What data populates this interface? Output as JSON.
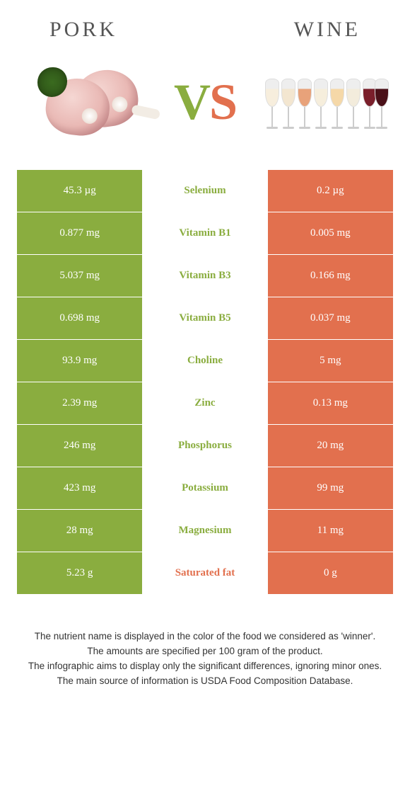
{
  "colors": {
    "left": "#8aad3f",
    "right": "#e2704e",
    "background": "#ffffff",
    "header_text": "#555555"
  },
  "header": {
    "left_title": "PORK",
    "right_title": "WINE"
  },
  "vs": {
    "v": "V",
    "s": "S"
  },
  "rows": [
    {
      "left": "45.3 µg",
      "label": "Selenium",
      "right": "0.2 µg",
      "winner": "left"
    },
    {
      "left": "0.877 mg",
      "label": "Vitamin B1",
      "right": "0.005 mg",
      "winner": "left"
    },
    {
      "left": "5.037 mg",
      "label": "Vitamin B3",
      "right": "0.166 mg",
      "winner": "left"
    },
    {
      "left": "0.698 mg",
      "label": "Vitamin B5",
      "right": "0.037 mg",
      "winner": "left"
    },
    {
      "left": "93.9 mg",
      "label": "Choline",
      "right": "5 mg",
      "winner": "left"
    },
    {
      "left": "2.39 mg",
      "label": "Zinc",
      "right": "0.13 mg",
      "winner": "left"
    },
    {
      "left": "246 mg",
      "label": "Phosphorus",
      "right": "20 mg",
      "winner": "left"
    },
    {
      "left": "423 mg",
      "label": "Potassium",
      "right": "99 mg",
      "winner": "left"
    },
    {
      "left": "28 mg",
      "label": "Magnesium",
      "right": "11 mg",
      "winner": "left"
    },
    {
      "left": "5.23 g",
      "label": "Saturated fat",
      "right": "0 g",
      "winner": "right"
    }
  ],
  "footnote": {
    "l1": "The nutrient name is displayed in the color of the food we considered as 'winner'.",
    "l2": "The amounts are specified per 100 gram of the product.",
    "l3": "The infographic aims to display only the significant differences, ignoring minor ones.",
    "l4": "The main source of information is USDA Food Composition Database."
  }
}
